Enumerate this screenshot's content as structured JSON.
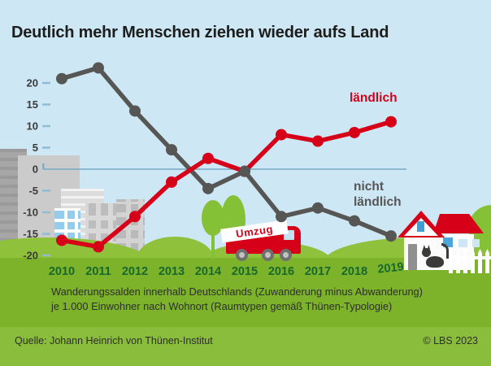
{
  "title": "Deutlich mehr Menschen ziehen wieder aufs Land",
  "chart_data": {
    "type": "line",
    "x": [
      2010,
      2011,
      2012,
      2013,
      2014,
      2015,
      2016,
      2017,
      2018,
      2019
    ],
    "series": [
      {
        "name": "nicht ländlich",
        "color": "#565655",
        "values": [
          21,
          23.5,
          13.5,
          4.5,
          -4.5,
          -0.5,
          -11,
          -9,
          -12,
          -15.5
        ]
      },
      {
        "name": "ländlich",
        "color": "#d60019",
        "values": [
          -16.5,
          -18,
          -11,
          -3,
          2.5,
          -0.5,
          8,
          6.5,
          8.5,
          11
        ]
      }
    ],
    "yticks": [
      20,
      15,
      10,
      5,
      0,
      -5,
      -10,
      -15,
      -20
    ],
    "ylim": [
      -20,
      25
    ],
    "grid": "zero-baseline-only",
    "legend_position": "labels-near-lines"
  },
  "legend": {
    "laendlich": "ländlich",
    "nicht_laendlich": "nicht ländlich"
  },
  "caption": {
    "line1": "Wanderungssalden innerhalb Deutschlands (Zuwanderung minus Abwanderung)",
    "line2": "je 1.000 Einwohner nach Wohnort (Raumtypen gemäß Thünen-Typologie)"
  },
  "footer": {
    "source": "Quelle: Johann Heinrich von Thünen-Institut",
    "copyright": "© LBS 2023"
  },
  "scenery": {
    "truck_label": "Umzug"
  },
  "colors": {
    "accent_red": "#d60019",
    "line_gray": "#565655",
    "sky": "#cde7f5",
    "grass": "#7cb32b",
    "hill": "#8fc13c",
    "footer_green": "#8abd3c",
    "year_label_green": "#17682d",
    "axis_blue": "#8fbcd4"
  }
}
